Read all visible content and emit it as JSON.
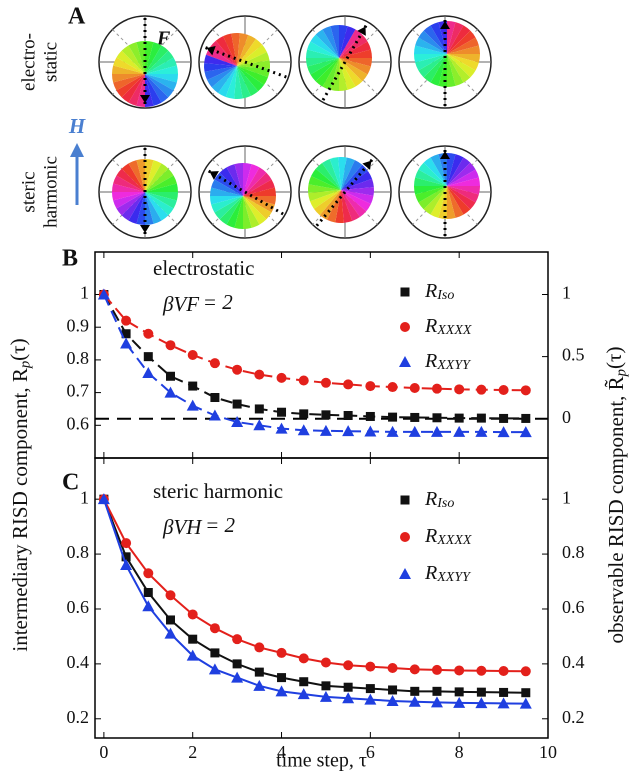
{
  "panel_a": {
    "label": "A",
    "rows": [
      [
        "electro-",
        "static"
      ],
      [
        "steric",
        "harmonic"
      ]
    ],
    "field_labels": [
      "F",
      "H"
    ]
  },
  "chart_data": [
    {
      "type": "line",
      "panel_label": "B",
      "annotations": [
        "electrostatic",
        "βVF = 2"
      ],
      "ylabel": "intermediary RISD component, Rp(τ)",
      "y2label": "observable RISD component, R̃p(τ)",
      "line_style": "dashed",
      "hline": 0.62,
      "x": [
        0,
        0.5,
        1,
        1.5,
        2,
        2.5,
        3,
        3.5,
        4,
        4.5,
        5,
        5.5,
        6,
        6.5,
        7,
        7.5,
        8,
        8.5,
        9,
        9.5
      ],
      "series": [
        {
          "name": "RIso",
          "color": "#111111",
          "marker": "square",
          "values": [
            1.0,
            0.88,
            0.81,
            0.75,
            0.72,
            0.685,
            0.665,
            0.65,
            0.64,
            0.635,
            0.632,
            0.63,
            0.627,
            0.625,
            0.624,
            0.623,
            0.622,
            0.622,
            0.621,
            0.621
          ]
        },
        {
          "name": "RXXXX",
          "color": "#e3201b",
          "marker": "circle",
          "values": [
            1.0,
            0.92,
            0.88,
            0.845,
            0.815,
            0.79,
            0.77,
            0.755,
            0.745,
            0.737,
            0.73,
            0.725,
            0.72,
            0.717,
            0.714,
            0.712,
            0.71,
            0.709,
            0.708,
            0.707
          ]
        },
        {
          "name": "RXXYY",
          "color": "#1f3fe0",
          "marker": "triangle",
          "values": [
            1.0,
            0.85,
            0.76,
            0.7,
            0.66,
            0.63,
            0.61,
            0.6,
            0.59,
            0.585,
            0.583,
            0.582,
            0.581,
            0.58,
            0.58,
            0.58,
            0.58,
            0.58,
            0.579,
            0.579
          ]
        }
      ],
      "xlim": [
        -0.2,
        10
      ],
      "xticks": [
        0,
        2,
        4,
        6,
        8,
        10
      ],
      "ylim": [
        0.5,
        1.13
      ],
      "yticks": [
        0.6,
        0.7,
        0.8,
        0.9,
        1.0
      ],
      "y2lim": [
        -0.316,
        1.342
      ],
      "y2ticks": [
        0.0,
        0.5,
        1.0
      ]
    },
    {
      "type": "line",
      "panel_label": "C",
      "annotations": [
        "steric harmonic",
        "βVH = 2"
      ],
      "xlabel": "time step, τ",
      "line_style": "solid",
      "x": [
        0,
        0.5,
        1,
        1.5,
        2,
        2.5,
        3,
        3.5,
        4,
        4.5,
        5,
        5.5,
        6,
        6.5,
        7,
        7.5,
        8,
        8.5,
        9,
        9.5
      ],
      "series": [
        {
          "name": "RIso",
          "color": "#111111",
          "marker": "square",
          "values": [
            1.0,
            0.79,
            0.66,
            0.56,
            0.49,
            0.44,
            0.4,
            0.37,
            0.35,
            0.335,
            0.32,
            0.315,
            0.31,
            0.305,
            0.3,
            0.3,
            0.298,
            0.297,
            0.296,
            0.295
          ]
        },
        {
          "name": "RXXXX",
          "color": "#e3201b",
          "marker": "circle",
          "values": [
            1.0,
            0.84,
            0.73,
            0.65,
            0.58,
            0.53,
            0.49,
            0.46,
            0.44,
            0.42,
            0.405,
            0.395,
            0.39,
            0.385,
            0.38,
            0.378,
            0.376,
            0.375,
            0.374,
            0.373
          ]
        },
        {
          "name": "RXXYY",
          "color": "#1f3fe0",
          "marker": "triangle",
          "values": [
            1.0,
            0.76,
            0.61,
            0.51,
            0.43,
            0.38,
            0.35,
            0.32,
            0.3,
            0.29,
            0.28,
            0.275,
            0.27,
            0.265,
            0.262,
            0.26,
            0.258,
            0.257,
            0.256,
            0.255
          ]
        }
      ],
      "xlim": [
        -0.2,
        10
      ],
      "xticks": [
        0,
        2,
        4,
        6,
        8,
        10
      ],
      "ylim": [
        0.13,
        1.15
      ],
      "yticks": [
        0.2,
        0.4,
        0.6,
        0.8,
        1.0
      ],
      "y2lim": [
        0.13,
        1.15
      ],
      "y2ticks": [
        0.2,
        0.4,
        0.6,
        0.8,
        1.0
      ]
    }
  ]
}
